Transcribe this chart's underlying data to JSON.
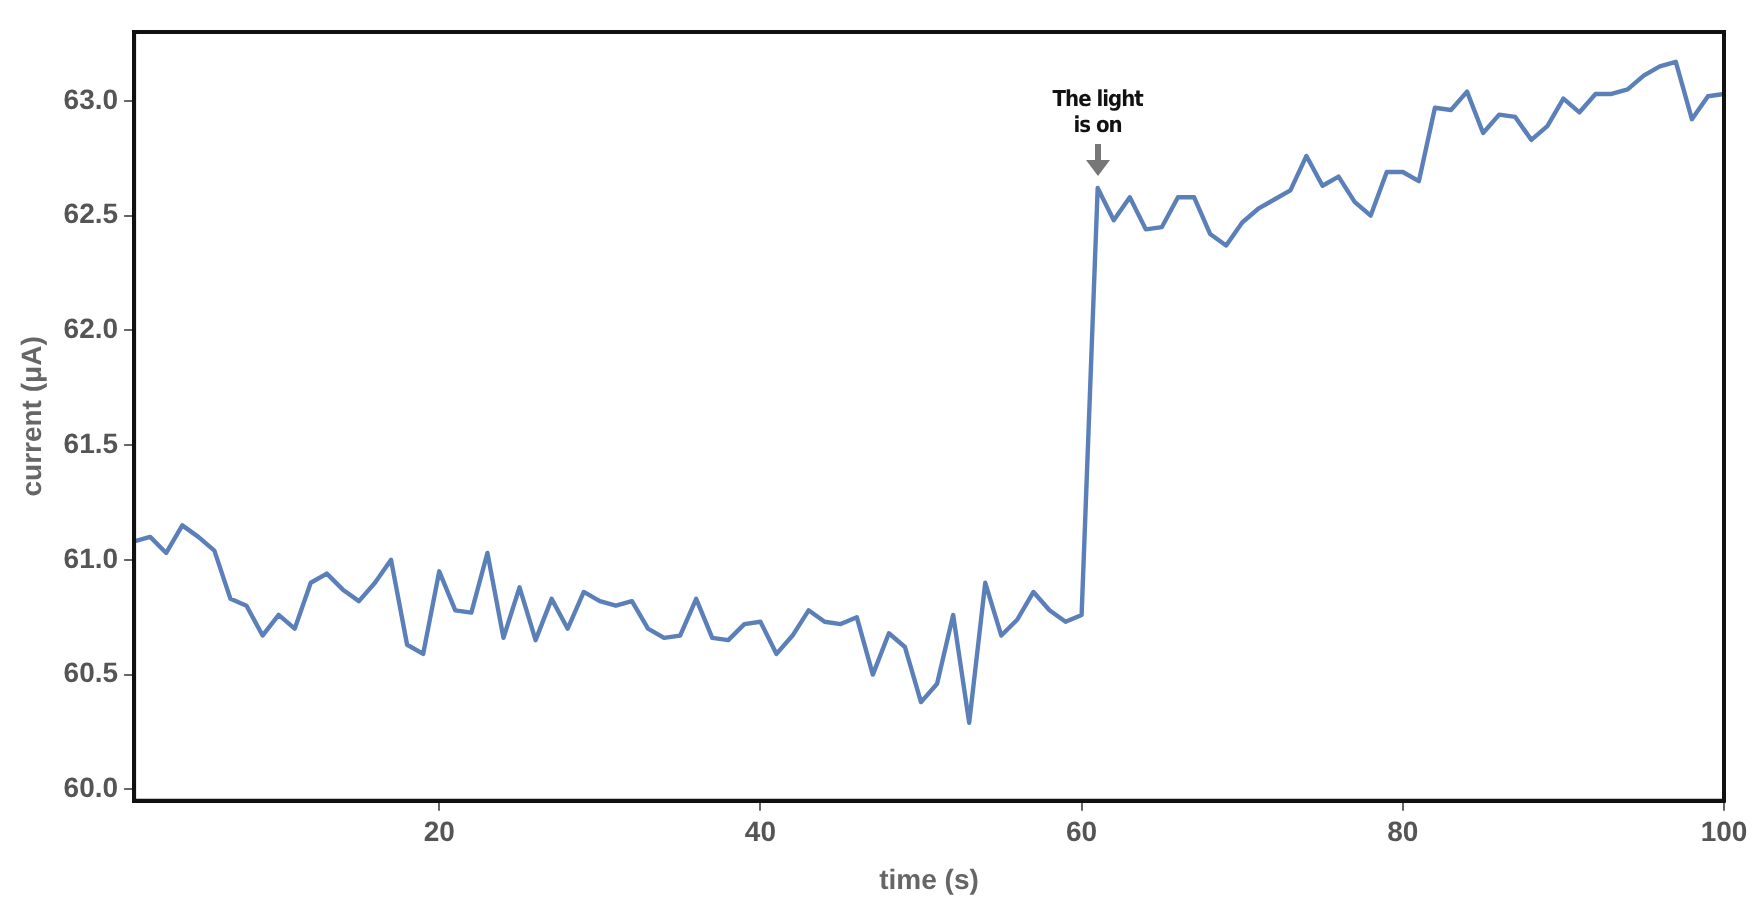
{
  "chart_data": {
    "type": "line",
    "xlabel": "time (s)",
    "ylabel": "current (μA)",
    "x": [
      1,
      2,
      3,
      4,
      5,
      6,
      7,
      8,
      9,
      10,
      11,
      12,
      13,
      14,
      15,
      16,
      17,
      18,
      19,
      20,
      21,
      22,
      23,
      24,
      25,
      26,
      27,
      28,
      29,
      30,
      31,
      32,
      33,
      34,
      35,
      36,
      37,
      38,
      39,
      40,
      41,
      42,
      43,
      44,
      45,
      46,
      47,
      48,
      49,
      50,
      51,
      52,
      53,
      54,
      55,
      56,
      57,
      58,
      59,
      60,
      61,
      62,
      63,
      64,
      65,
      66,
      67,
      68,
      69,
      70,
      71,
      72,
      73,
      74,
      75,
      76,
      77,
      78,
      79,
      80,
      81,
      82,
      83,
      84,
      85,
      86,
      87,
      88,
      89,
      90,
      91,
      92,
      93,
      94,
      95,
      96,
      97,
      98,
      99,
      100
    ],
    "series": [
      {
        "color": "#5b7fb8",
        "values": [
          61.08,
          61.1,
          61.03,
          61.15,
          61.1,
          61.04,
          60.83,
          60.8,
          60.67,
          60.76,
          60.7,
          60.9,
          60.94,
          60.87,
          60.82,
          60.9,
          61.0,
          60.63,
          60.59,
          60.95,
          60.78,
          60.77,
          61.03,
          60.66,
          60.88,
          60.65,
          60.83,
          60.7,
          60.86,
          60.82,
          60.8,
          60.82,
          60.7,
          60.66,
          60.67,
          60.83,
          60.66,
          60.65,
          60.72,
          60.73,
          60.59,
          60.67,
          60.78,
          60.73,
          60.72,
          60.75,
          60.5,
          60.68,
          60.62,
          60.38,
          60.46,
          60.76,
          60.29,
          60.9,
          60.67,
          60.74,
          60.86,
          60.78,
          60.73,
          60.76,
          62.62,
          62.48,
          62.58,
          62.44,
          62.45,
          62.58,
          62.58,
          62.42,
          62.37,
          62.47,
          62.53,
          62.57,
          62.61,
          62.76,
          62.63,
          62.67,
          62.56,
          62.5,
          62.69,
          62.69,
          62.65,
          62.97,
          62.96,
          63.04,
          62.86,
          62.94,
          62.93,
          62.83,
          62.89,
          63.01,
          62.95,
          63.03,
          63.03,
          63.05,
          63.11,
          63.15,
          63.17,
          62.92,
          63.02,
          63.03
        ]
      }
    ],
    "xlim": [
      1,
      100
    ],
    "xticks": [
      20,
      40,
      60,
      80,
      100
    ],
    "ylim": [
      59.95,
      63.3
    ],
    "yticks": [
      {
        "value": 60,
        "label": "60.0"
      },
      {
        "value": 60.5,
        "label": "60.5"
      },
      {
        "value": 61,
        "label": "61.0"
      },
      {
        "value": 61.5,
        "label": "61.5"
      },
      {
        "value": 62,
        "label": "62.0"
      },
      {
        "value": 62.5,
        "label": "62.5"
      },
      {
        "value": 63,
        "label": "63.0"
      }
    ],
    "annotations": [
      {
        "text": "The light is on",
        "x": 61,
        "y": 62.62
      }
    ],
    "grid": false,
    "legend": false,
    "marker": "none",
    "line_style": "solid"
  }
}
